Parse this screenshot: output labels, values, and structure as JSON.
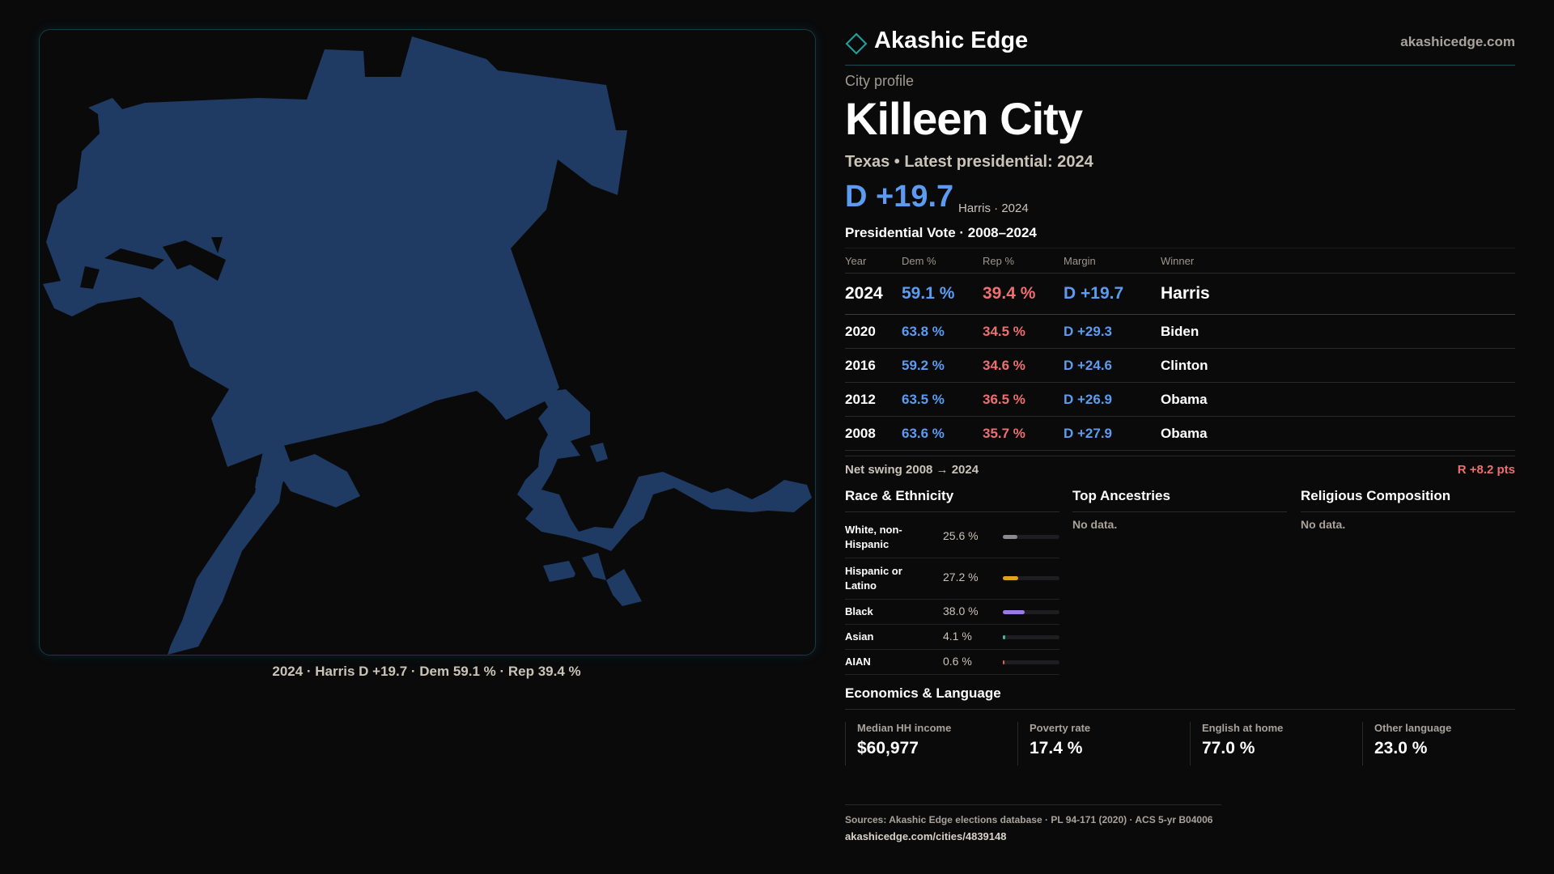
{
  "brand": {
    "name": "Akashic Edge",
    "url": "akashicedge.com"
  },
  "profile": {
    "kicker": "City profile",
    "city": "Killeen City",
    "subtitle": "Texas • Latest presidential: 2024",
    "margin_big": "D +19.7",
    "margin_note": "Harris · 2024"
  },
  "map": {
    "caption": "2024 · Harris D +19.7 · Dem 59.1 % · Rep 39.4 %",
    "fill_color": "#1f3a63"
  },
  "vote": {
    "title": "Presidential Vote · 2008–2024",
    "headers": {
      "year": "Year",
      "dem": "Dem %",
      "rep": "Rep %",
      "margin": "Margin",
      "winner": "Winner"
    },
    "rows": [
      {
        "year": "2024",
        "dem": "59.1 %",
        "rep": "39.4 %",
        "margin": "D +19.7",
        "winner": "Harris"
      },
      {
        "year": "2020",
        "dem": "63.8 %",
        "rep": "34.5 %",
        "margin": "D +29.3",
        "winner": "Biden"
      },
      {
        "year": "2016",
        "dem": "59.2 %",
        "rep": "34.6 %",
        "margin": "D +24.6",
        "winner": "Clinton"
      },
      {
        "year": "2012",
        "dem": "63.5 %",
        "rep": "36.5 %",
        "margin": "D +26.9",
        "winner": "Obama"
      },
      {
        "year": "2008",
        "dem": "63.6 %",
        "rep": "35.7 %",
        "margin": "D +27.9",
        "winner": "Obama"
      }
    ],
    "swing_label": "Net swing 2008 → 2024",
    "swing_value": "R +8.2 pts"
  },
  "race": {
    "title": "Race & Ethnicity",
    "items": [
      {
        "label": "White, non-Hispanic",
        "value": "25.6 %",
        "pct": 25.6,
        "color": "#8a8a90"
      },
      {
        "label": "Hispanic or Latino",
        "value": "27.2 %",
        "pct": 27.2,
        "color": "#e0a21e"
      },
      {
        "label": "Black",
        "value": "38.0 %",
        "pct": 38.0,
        "color": "#9b79e6"
      },
      {
        "label": "Asian",
        "value": "4.1 %",
        "pct": 4.1,
        "color": "#3fb8a6"
      },
      {
        "label": "AIAN",
        "value": "0.6 %",
        "pct": 0.6,
        "color": "#d8644a"
      }
    ]
  },
  "ancestries": {
    "title": "Top Ancestries",
    "empty": "No data."
  },
  "religion": {
    "title": "Religious Composition",
    "empty": "No data."
  },
  "economics": {
    "title": "Economics & Language",
    "cells": [
      {
        "label": "Median HH income",
        "value": "$60,977"
      },
      {
        "label": "Poverty rate",
        "value": "17.4 %"
      },
      {
        "label": "English at home",
        "value": "77.0 %"
      },
      {
        "label": "Other language",
        "value": "23.0 %"
      }
    ]
  },
  "sources": {
    "text": "Sources: Akashic Edge elections database · PL 94-171 (2020) · ACS 5-yr B04006",
    "url": "akashicedge.com/cities/4839148"
  }
}
